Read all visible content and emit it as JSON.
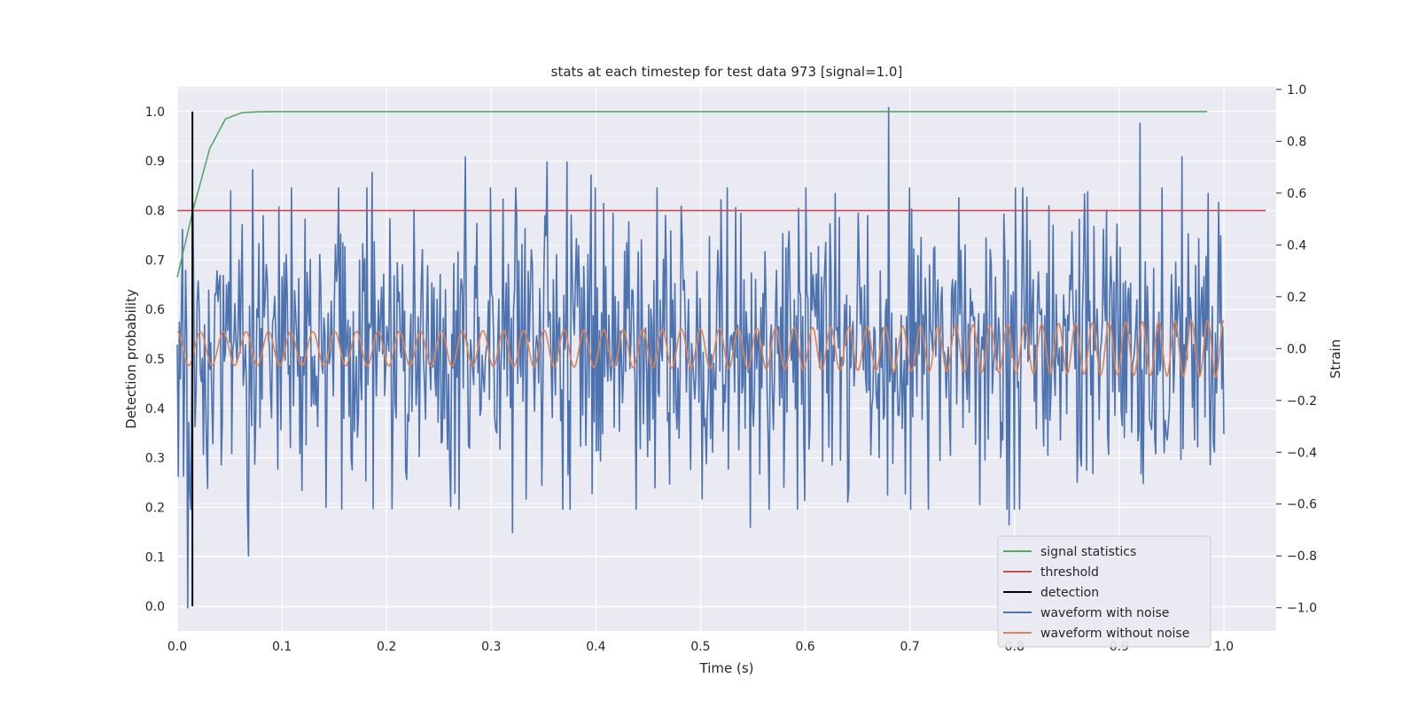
{
  "chart_data": {
    "type": "line",
    "title": "stats at each timestep for test data 973 [signal=1.0]",
    "xlabel": "Time (s)",
    "ylabel_left": "Detection probability",
    "ylabel_right": "Strain",
    "xlim": [
      0.0,
      1.05
    ],
    "ylim_left": [
      -0.05,
      1.05
    ],
    "ylim_right": [
      -1.09,
      1.01
    ],
    "x_ticks": [
      "0.0",
      "0.1",
      "0.2",
      "0.3",
      "0.4",
      "0.5",
      "0.6",
      "0.7",
      "0.8",
      "0.9",
      "1.0"
    ],
    "y_left_ticks": [
      "0.0",
      "0.1",
      "0.2",
      "0.3",
      "0.4",
      "0.5",
      "0.6",
      "0.7",
      "0.8",
      "0.9",
      "1.0"
    ],
    "y_right_ticks": [
      "1.0",
      "0.8",
      "0.6",
      "0.4",
      "0.2",
      "0.0",
      "−0.2",
      "−0.4",
      "−0.6",
      "−0.8",
      "−1.0"
    ],
    "grid": true,
    "legend_position": "bottom-right",
    "series": [
      {
        "name": "signal statistics",
        "axis": "left",
        "color": "#55a868",
        "x": [
          0.0,
          0.015,
          0.031,
          0.046,
          0.062,
          0.077,
          0.092,
          0.2,
          0.4,
          0.6,
          0.8,
          0.984
        ],
        "values": [
          0.665,
          0.8,
          0.925,
          0.985,
          0.998,
          0.9995,
          1.0,
          1.0,
          1.0,
          1.0,
          1.0,
          1.0
        ]
      },
      {
        "name": "threshold",
        "axis": "left",
        "color": "#c44e52",
        "x": [
          0.0,
          1.04
        ],
        "values": [
          0.8,
          0.8
        ]
      },
      {
        "name": "detection",
        "axis": "left",
        "color": "#000000",
        "x": [
          0.0145,
          0.0145
        ],
        "values": [
          0.0,
          1.0
        ]
      },
      {
        "name": "waveform with noise",
        "axis": "right",
        "color": "#4c72b0",
        "x_start": 0.0,
        "x_end": 1.0,
        "n_points": 1000,
        "amplitude_envelope": 0.55,
        "peaks": [
          {
            "x": 0.01,
            "value": -1.0
          },
          {
            "x": 0.068,
            "value": -0.8
          },
          {
            "x": 0.072,
            "value": 0.69
          },
          {
            "x": 0.186,
            "value": 0.68
          },
          {
            "x": 0.275,
            "value": 0.74
          },
          {
            "x": 0.32,
            "value": -0.71
          },
          {
            "x": 0.353,
            "value": 0.72
          },
          {
            "x": 0.372,
            "value": 0.72
          },
          {
            "x": 0.395,
            "value": 0.67
          },
          {
            "x": 0.548,
            "value": -0.69
          },
          {
            "x": 0.68,
            "value": 0.93
          },
          {
            "x": 0.795,
            "value": -0.68
          },
          {
            "x": 0.92,
            "value": 0.87
          },
          {
            "x": 0.96,
            "value": 0.74
          }
        ]
      },
      {
        "name": "waveform without noise",
        "axis": "right",
        "color": "#dd8452",
        "x_start": 0.0,
        "x_end": 1.0,
        "amplitude_start": 0.065,
        "amplitude_end": 0.11,
        "frequency_start": 45,
        "frequency_end": 65,
        "phase_start": 1.57
      }
    ]
  }
}
